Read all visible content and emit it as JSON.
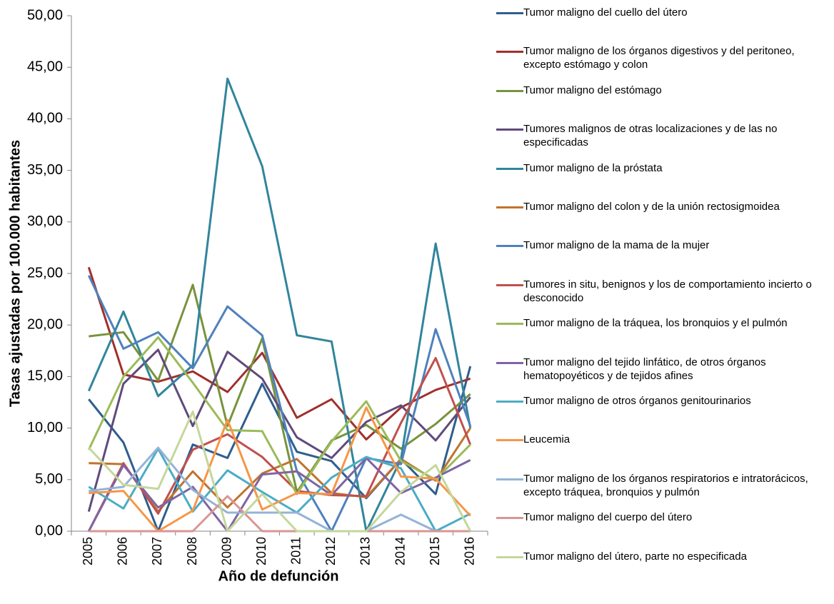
{
  "chart_data": {
    "type": "line",
    "x_label": "Año de defunción",
    "y_label": "Tasas ajustadas por 100.000 habitantes",
    "categories": [
      "2005",
      "2006",
      "2007",
      "2008",
      "2009",
      "2010",
      "2011",
      "2012",
      "2013",
      "2014",
      "2015",
      "2016"
    ],
    "ylim": [
      0,
      50
    ],
    "yticks": [
      {
        "value": 0,
        "label": "0,00"
      },
      {
        "value": 5,
        "label": "5,00"
      },
      {
        "value": 10,
        "label": "10,00"
      },
      {
        "value": 15,
        "label": "15,00"
      },
      {
        "value": 20,
        "label": "20,00"
      },
      {
        "value": 25,
        "label": "25,00"
      },
      {
        "value": 30,
        "label": "30,00"
      },
      {
        "value": 35,
        "label": "35,00"
      },
      {
        "value": 40,
        "label": "40,00"
      },
      {
        "value": 45,
        "label": "45,00"
      },
      {
        "value": 50,
        "label": "50,00"
      }
    ],
    "legend": "right",
    "series": [
      {
        "name": "Tumor maligno del cuello del útero",
        "color": "#2e5e8e",
        "values": [
          12.8,
          8.6,
          0,
          8.4,
          7.1,
          14.3,
          7.7,
          6.8,
          3.2,
          7.0,
          3.6,
          16.0
        ]
      },
      {
        "name": "Tumor maligno de los órganos digestivos y del peritoneo, excepto estómago y colon",
        "color": "#a0302c",
        "values": [
          25.6,
          15.2,
          14.5,
          15.5,
          13.5,
          17.3,
          11.0,
          12.8,
          8.9,
          12.0,
          13.7,
          14.8
        ]
      },
      {
        "name": "Tumor maligno del estómago",
        "color": "#77933c",
        "values": [
          18.9,
          19.3,
          14.6,
          23.9,
          10.2,
          18.7,
          3.8,
          8.8,
          10.3,
          8.0,
          10.4,
          13.3
        ]
      },
      {
        "name": "Tumores malignos de otras localizaciones y de las no especificadas",
        "color": "#604a7b",
        "values": [
          1.9,
          14.3,
          17.6,
          10.2,
          17.4,
          14.8,
          9.1,
          7.1,
          10.6,
          12.2,
          8.8,
          13.0
        ]
      },
      {
        "name": "Tumor maligno de la próstata",
        "color": "#31859c",
        "values": [
          13.6,
          21.3,
          13.1,
          16.1,
          43.9,
          35.4,
          19.0,
          18.4,
          0,
          7.0,
          27.9,
          10.0
        ]
      },
      {
        "name": "Tumor maligno del colon y de la unión rectosigmoidea",
        "color": "#c0732f",
        "values": [
          6.6,
          6.5,
          1.9,
          5.8,
          2.3,
          5.6,
          7.0,
          3.7,
          3.3,
          7.0,
          4.9,
          10.0
        ]
      },
      {
        "name": "Tumor maligno de la mama de la mujer",
        "color": "#4f81bd",
        "values": [
          24.8,
          17.7,
          19.3,
          15.8,
          21.8,
          19.0,
          5.8,
          0,
          7.1,
          6.5,
          19.6,
          10.2
        ]
      },
      {
        "name": "Tumores in situ, benignos y los de comportamiento incierto o desconocido",
        "color": "#c0504d",
        "values": [
          0,
          6.6,
          1.7,
          7.9,
          9.4,
          7.2,
          3.9,
          3.5,
          3.4,
          10.5,
          16.8,
          8.4
        ]
      },
      {
        "name": "Tumor maligno de la tráquea, los bronquios y el pulmón",
        "color": "#9bbb59",
        "values": [
          7.9,
          15.0,
          18.8,
          14.4,
          9.8,
          9.7,
          3.6,
          8.7,
          12.6,
          6.8,
          5.0,
          8.4
        ]
      },
      {
        "name": "Tumor maligno del tejido linfático, de otros órganos hematopoyéticos y de tejidos afines",
        "color": "#8064a2",
        "values": [
          0,
          6.4,
          2.3,
          4.3,
          0,
          5.5,
          5.8,
          3.5,
          7.1,
          3.7,
          5.2,
          6.9
        ]
      },
      {
        "name": "Tumor maligno de otros órganos genitourinarios",
        "color": "#4bacc6",
        "values": [
          4.3,
          2.2,
          8.0,
          1.9,
          5.9,
          3.8,
          1.8,
          5.2,
          7.2,
          6.1,
          0,
          1.7
        ]
      },
      {
        "name": "Leucemia",
        "color": "#f79646",
        "values": [
          3.7,
          3.9,
          0,
          2.0,
          10.8,
          2.1,
          3.7,
          3.6,
          12.0,
          5.3,
          5.1,
          1.5
        ]
      },
      {
        "name": "Tumor maligno de los órganos respiratorios e intratorácicos, excepto tráquea, bronquios y pulmón",
        "color": "#95b3d7",
        "values": [
          3.9,
          4.3,
          8.1,
          4.0,
          1.8,
          1.8,
          1.8,
          0,
          0,
          1.6,
          0,
          0
        ]
      },
      {
        "name": "Tumor maligno del cuerpo del útero",
        "color": "#d99694",
        "values": [
          0,
          0,
          0,
          0,
          3.4,
          0,
          0,
          0,
          0,
          0,
          0,
          0
        ]
      },
      {
        "name": "Tumor maligno del útero, parte no especificada",
        "color": "#c4d79b",
        "values": [
          8.1,
          4.5,
          4.1,
          11.6,
          0,
          3.6,
          0,
          0,
          0,
          3.8,
          6.4,
          0
        ]
      }
    ]
  }
}
